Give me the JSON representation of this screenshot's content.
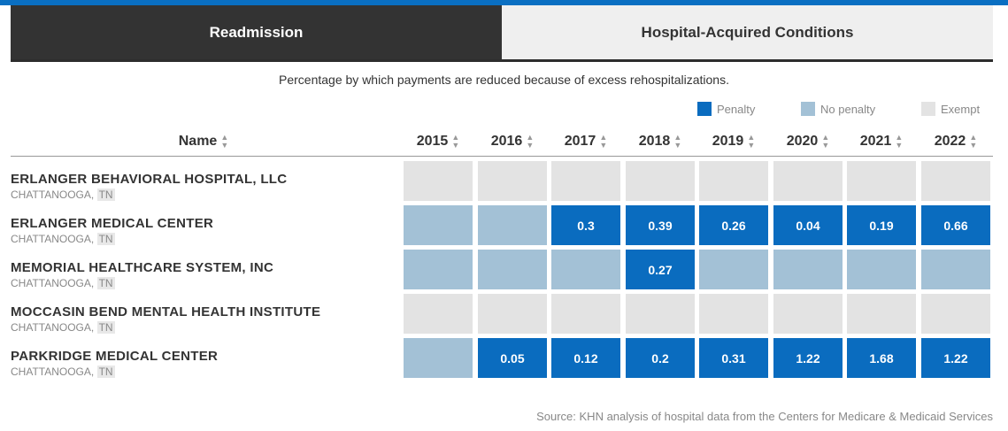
{
  "tabs": [
    {
      "label": "Readmission",
      "active": true
    },
    {
      "label": "Hospital-Acquired Conditions",
      "active": false
    }
  ],
  "subtitle": "Percentage by which payments are reduced because of excess rehospitalizations.",
  "legend": [
    {
      "label": "Penalty",
      "color": "#0a6cbf"
    },
    {
      "label": "No penalty",
      "color": "#a3c1d6"
    },
    {
      "label": "Exempt",
      "color": "#e3e3e3"
    }
  ],
  "table": {
    "name_header": "Name",
    "sort_icon": "sort-icon"
  },
  "chart_data": {
    "type": "heatmap",
    "subtitle": "Percentage by which payments are reduced because of excess rehospitalizations.",
    "columns": [
      "2015",
      "2016",
      "2017",
      "2018",
      "2019",
      "2020",
      "2021",
      "2022"
    ],
    "legend": [
      "Penalty",
      "No penalty",
      "Exempt"
    ],
    "rows": [
      {
        "name": "ERLANGER BEHAVIORAL HOSPITAL, LLC",
        "city": "CHATTANOOGA,",
        "state": "TN",
        "cells": [
          {
            "status": "exempt"
          },
          {
            "status": "exempt"
          },
          {
            "status": "exempt"
          },
          {
            "status": "exempt"
          },
          {
            "status": "exempt"
          },
          {
            "status": "exempt"
          },
          {
            "status": "exempt"
          },
          {
            "status": "exempt"
          }
        ]
      },
      {
        "name": "ERLANGER MEDICAL CENTER",
        "city": "CHATTANOOGA,",
        "state": "TN",
        "cells": [
          {
            "status": "none"
          },
          {
            "status": "none"
          },
          {
            "status": "penalty",
            "value": "0.3"
          },
          {
            "status": "penalty",
            "value": "0.39"
          },
          {
            "status": "penalty",
            "value": "0.26"
          },
          {
            "status": "penalty",
            "value": "0.04"
          },
          {
            "status": "penalty",
            "value": "0.19"
          },
          {
            "status": "penalty",
            "value": "0.66"
          }
        ]
      },
      {
        "name": "MEMORIAL HEALTHCARE SYSTEM, INC",
        "city": "CHATTANOOGA,",
        "state": "TN",
        "cells": [
          {
            "status": "none"
          },
          {
            "status": "none"
          },
          {
            "status": "none"
          },
          {
            "status": "penalty",
            "value": "0.27"
          },
          {
            "status": "none"
          },
          {
            "status": "none"
          },
          {
            "status": "none"
          },
          {
            "status": "none"
          }
        ]
      },
      {
        "name": "MOCCASIN BEND MENTAL HEALTH INSTITUTE",
        "city": "CHATTANOOGA,",
        "state": "TN",
        "cells": [
          {
            "status": "exempt"
          },
          {
            "status": "exempt"
          },
          {
            "status": "exempt"
          },
          {
            "status": "exempt"
          },
          {
            "status": "exempt"
          },
          {
            "status": "exempt"
          },
          {
            "status": "exempt"
          },
          {
            "status": "exempt"
          }
        ]
      },
      {
        "name": "PARKRIDGE MEDICAL CENTER",
        "city": "CHATTANOOGA,",
        "state": "TN",
        "cells": [
          {
            "status": "none"
          },
          {
            "status": "penalty",
            "value": "0.05"
          },
          {
            "status": "penalty",
            "value": "0.12"
          },
          {
            "status": "penalty",
            "value": "0.2"
          },
          {
            "status": "penalty",
            "value": "0.31"
          },
          {
            "status": "penalty",
            "value": "1.22"
          },
          {
            "status": "penalty",
            "value": "1.68"
          },
          {
            "status": "penalty",
            "value": "1.22"
          }
        ]
      }
    ],
    "status_colors": {
      "penalty": "#0a6cbf",
      "none": "#a3c1d6",
      "exempt": "#e3e3e3"
    }
  },
  "source": "Source: KHN analysis of hospital data from the Centers for Medicare & Medicaid Services"
}
